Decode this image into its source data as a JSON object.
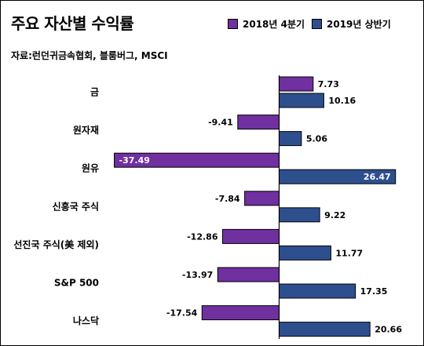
{
  "title": "주요 자산별 수익률",
  "source": "자료:런던귀금속협회, 블룸버그, MSCI",
  "colors": {
    "series1": "#7030A0",
    "series2": "#2E4F8E"
  },
  "chart_data": {
    "type": "bar",
    "orientation": "horizontal",
    "categories": [
      "금",
      "원자재",
      "원유",
      "신흥국 주식",
      "선진국 주식(美 제외)",
      "S&P 500",
      "나스닥"
    ],
    "series": [
      {
        "name": "2018년 4분기",
        "values": [
          7.73,
          -9.41,
          -37.49,
          -7.84,
          -12.86,
          -13.97,
          -17.54
        ]
      },
      {
        "name": "2019년 상반기",
        "values": [
          10.16,
          5.06,
          26.47,
          9.22,
          11.77,
          17.35,
          20.66
        ]
      }
    ],
    "value_labels": [
      [
        "7.73",
        "-9.41",
        "-37.49",
        "-7.84",
        "-12.86",
        "-13.97",
        "-17.54"
      ],
      [
        "10.16",
        "5.06",
        "26.47",
        "9.22",
        "11.77",
        "17.35",
        "20.66"
      ]
    ],
    "legend_position": "top-right",
    "grid": false
  }
}
